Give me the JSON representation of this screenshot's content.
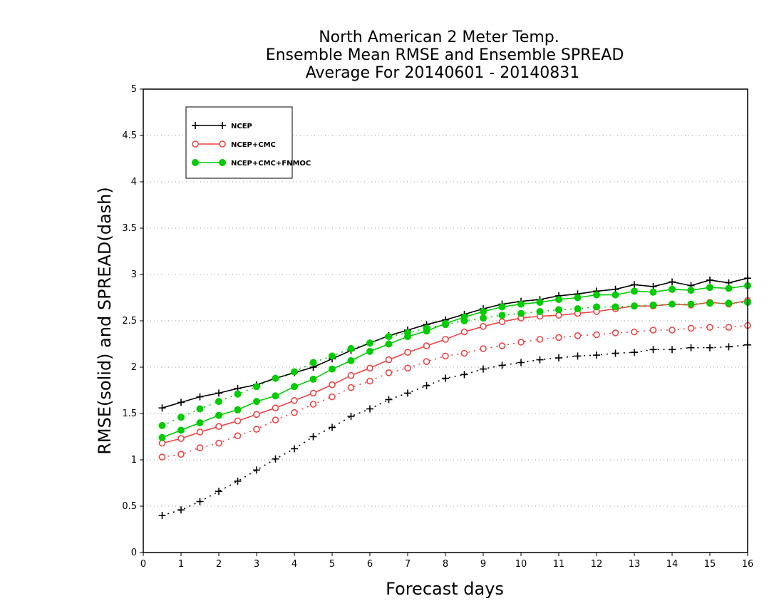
{
  "chart_data": {
    "type": "line",
    "title": [
      "North American 2 Meter Temp.",
      "Ensemble Mean RMSE and Ensemble SPREAD",
      "Average For 20140601 - 20140831"
    ],
    "xlabel": "Forecast days",
    "ylabel": "RMSE(solid) and SPREAD(dash)",
    "xlim": [
      0,
      16
    ],
    "ylim": [
      0,
      5
    ],
    "x_ticks": [
      0,
      1,
      2,
      3,
      4,
      5,
      6,
      7,
      8,
      9,
      10,
      11,
      12,
      13,
      14,
      15,
      16
    ],
    "y_ticks": [
      0,
      0.5,
      1,
      1.5,
      2,
      2.5,
      3,
      3.5,
      4,
      4.5,
      5
    ],
    "y_tick_labels": [
      "0",
      "0.5",
      "1",
      "1.5",
      "2",
      "2.5",
      "3",
      "3.5",
      "4",
      "4.5",
      "5"
    ],
    "grid": "horizontal dotted",
    "legend_position": "top-left",
    "x": [
      0.5,
      1,
      1.5,
      2,
      2.5,
      3,
      3.5,
      4,
      4.5,
      5,
      5.5,
      6,
      6.5,
      7,
      7.5,
      8,
      8.5,
      9,
      9.5,
      10,
      10.5,
      11,
      11.5,
      12,
      12.5,
      13,
      13.5,
      14,
      14.5,
      15,
      15.5,
      16
    ],
    "series": [
      {
        "name": "NCEP",
        "color": "#000000",
        "marker": "plus",
        "rmse": [
          1.56,
          1.62,
          1.68,
          1.72,
          1.77,
          1.81,
          1.88,
          1.94,
          2.0,
          2.09,
          2.18,
          2.26,
          2.34,
          2.4,
          2.46,
          2.51,
          2.57,
          2.63,
          2.68,
          2.71,
          2.73,
          2.77,
          2.79,
          2.82,
          2.84,
          2.89,
          2.87,
          2.92,
          2.88,
          2.94,
          2.91,
          2.96
        ],
        "spread": [
          0.4,
          0.46,
          0.55,
          0.66,
          0.77,
          0.89,
          1.01,
          1.12,
          1.25,
          1.35,
          1.47,
          1.55,
          1.65,
          1.72,
          1.8,
          1.88,
          1.92,
          1.98,
          2.02,
          2.05,
          2.08,
          2.1,
          2.12,
          2.13,
          2.15,
          2.16,
          2.19,
          2.19,
          2.21,
          2.21,
          2.22,
          2.24
        ]
      },
      {
        "name": "NCEP+CMC",
        "color": "#ee4444",
        "marker": "open-circle",
        "rmse": [
          1.18,
          1.23,
          1.3,
          1.36,
          1.42,
          1.49,
          1.56,
          1.64,
          1.72,
          1.81,
          1.91,
          1.99,
          2.08,
          2.16,
          2.23,
          2.3,
          2.38,
          2.44,
          2.49,
          2.53,
          2.55,
          2.56,
          2.58,
          2.6,
          2.63,
          2.66,
          2.66,
          2.68,
          2.67,
          2.7,
          2.68,
          2.72
        ],
        "spread": [
          1.03,
          1.06,
          1.13,
          1.18,
          1.26,
          1.33,
          1.43,
          1.51,
          1.6,
          1.68,
          1.78,
          1.85,
          1.94,
          1.99,
          2.06,
          2.12,
          2.15,
          2.2,
          2.23,
          2.27,
          2.3,
          2.32,
          2.34,
          2.35,
          2.37,
          2.38,
          2.4,
          2.4,
          2.42,
          2.43,
          2.43,
          2.45
        ]
      },
      {
        "name": "NCEP+CMC+FNMOC",
        "color": "#00cc00",
        "marker": "filled-circle",
        "rmse": [
          1.24,
          1.32,
          1.4,
          1.48,
          1.54,
          1.63,
          1.69,
          1.79,
          1.87,
          1.98,
          2.07,
          2.17,
          2.25,
          2.33,
          2.39,
          2.47,
          2.54,
          2.6,
          2.65,
          2.68,
          2.7,
          2.73,
          2.75,
          2.78,
          2.78,
          2.82,
          2.81,
          2.84,
          2.83,
          2.86,
          2.85,
          2.88
        ],
        "spread": [
          1.37,
          1.46,
          1.55,
          1.63,
          1.71,
          1.79,
          1.88,
          1.95,
          2.05,
          2.12,
          2.2,
          2.26,
          2.33,
          2.37,
          2.42,
          2.46,
          2.5,
          2.53,
          2.56,
          2.58,
          2.6,
          2.62,
          2.63,
          2.65,
          2.65,
          2.66,
          2.67,
          2.68,
          2.68,
          2.69,
          2.69,
          2.7
        ]
      }
    ]
  }
}
